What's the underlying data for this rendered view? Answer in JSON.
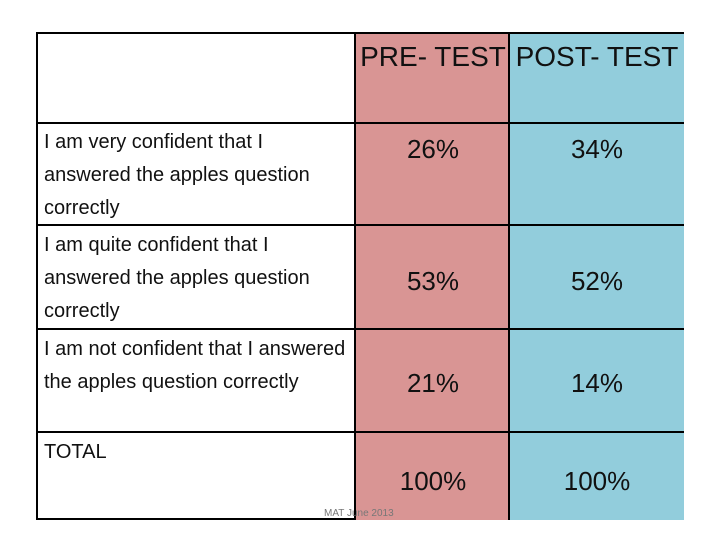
{
  "header": {
    "pre": "PRE- TEST",
    "post": "POST- TEST"
  },
  "rows": [
    {
      "label": "I am very confident that I answered the apples question correctly",
      "pre": "26%",
      "post": "34%"
    },
    {
      "label": "I am quite confident that I answered the apples question correctly",
      "pre": "53%",
      "post": "52%"
    },
    {
      "label": "I am not confident that I answered the apples question correctly",
      "pre": "21%",
      "post": "14%"
    },
    {
      "label": "TOTAL",
      "pre": "100%",
      "post": "100%"
    }
  ],
  "footer": "MAT June 2013",
  "colors": {
    "pre_column": "#d99594",
    "post_column": "#92cddc"
  }
}
